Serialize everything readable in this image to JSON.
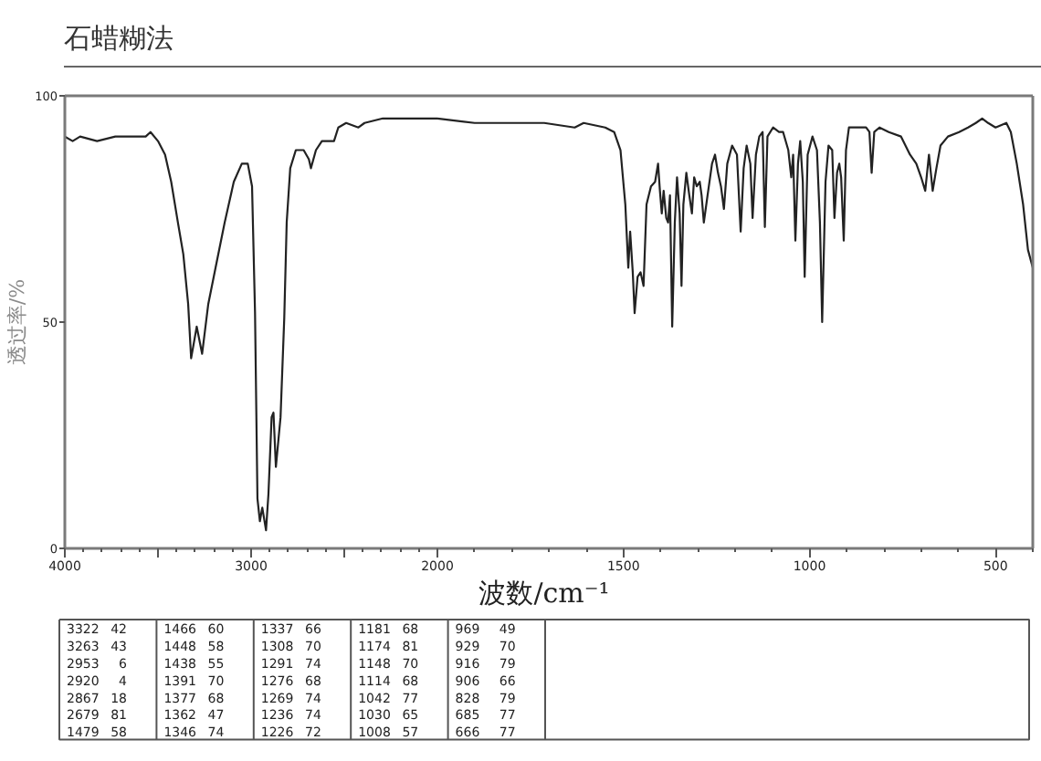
{
  "chart_data": [
    {
      "type": "line",
      "title": "石蜡糊法",
      "ylabel": "透过率/%",
      "xlim": [
        4000,
        2000
      ],
      "xticks": [
        4000,
        {
          "value": 3500,
          "label": null
        },
        3000,
        {
          "value": 2500,
          "label": null
        },
        2000
      ],
      "ylim": [
        0,
        100
      ],
      "yticks": [
        0,
        50,
        100
      ],
      "color": "#222222",
      "x": [
        4000,
        3958,
        3918,
        3827,
        3729,
        3566,
        3540,
        3500,
        3462,
        3429,
        3393,
        3364,
        3338,
        3322,
        3292,
        3263,
        3230,
        3191,
        3142,
        3093,
        3050,
        3018,
        2995,
        2979,
        2966,
        2953,
        2940,
        2920,
        2907,
        2890,
        2880,
        2867,
        2842,
        2822,
        2809,
        2790,
        2760,
        2718,
        2690,
        2679,
        2652,
        2620,
        2555,
        2532,
        2490,
        2424,
        2391,
        2293,
        2098,
        2000
      ],
      "values": [
        91,
        90,
        91,
        90,
        91,
        91,
        92,
        90,
        87,
        81,
        72,
        65,
        54,
        42,
        49,
        43,
        54,
        62,
        72,
        81,
        85,
        85,
        80,
        52,
        11,
        6,
        9,
        4,
        12,
        29,
        30,
        18,
        29,
        51,
        72,
        84,
        88,
        88,
        86,
        84,
        88,
        90,
        90,
        93,
        94,
        93,
        94,
        95,
        95,
        95
      ]
    },
    {
      "type": "line",
      "xlabel": "波数/cm⁻¹",
      "xlim": [
        2000,
        400
      ],
      "xticks": [
        1500,
        1000,
        500
      ],
      "ylim": [
        0,
        100
      ],
      "tick_labels": "x",
      "color": "#222222",
      "x": [
        2000,
        1900,
        1795,
        1713,
        1631,
        1607,
        1549,
        1525,
        1508,
        1495,
        1487,
        1482,
        1475,
        1470,
        1462,
        1454,
        1446,
        1438,
        1426,
        1415,
        1407,
        1402,
        1397,
        1392,
        1385,
        1380,
        1375,
        1369,
        1362,
        1356,
        1349,
        1344,
        1339,
        1331,
        1323,
        1316,
        1310,
        1303,
        1295,
        1290,
        1284,
        1274,
        1262,
        1254,
        1246,
        1238,
        1230,
        1221,
        1208,
        1195,
        1185,
        1177,
        1169,
        1159,
        1153,
        1144,
        1135,
        1126,
        1120,
        1113,
        1098,
        1082,
        1071,
        1057,
        1049,
        1044,
        1038,
        1031,
        1025,
        1018,
        1013,
        1005,
        992,
        980,
        972,
        966,
        957,
        949,
        939,
        933,
        926,
        920,
        915,
        908,
        902,
        894,
        869,
        848,
        839,
        833,
        826,
        812,
        787,
        754,
        730,
        713,
        700,
        689,
        679,
        669,
        659,
        648,
        628,
        598,
        574,
        553,
        536,
        520,
        500,
        471,
        459,
        443,
        426,
        413,
        400
      ],
      "values": [
        95,
        94,
        94,
        94,
        93,
        94,
        93,
        92,
        88,
        76,
        62,
        70,
        61,
        52,
        60,
        61,
        58,
        76,
        80,
        81,
        85,
        79,
        74,
        79,
        73,
        72,
        78,
        49,
        72,
        82,
        74,
        58,
        76,
        83,
        78,
        74,
        82,
        80,
        81,
        78,
        72,
        78,
        85,
        87,
        83,
        80,
        75,
        85,
        89,
        87,
        70,
        84,
        89,
        85,
        73,
        87,
        91,
        92,
        71,
        91,
        93,
        92,
        92,
        88,
        82,
        87,
        68,
        85,
        90,
        81,
        60,
        87,
        91,
        88,
        72,
        50,
        81,
        89,
        88,
        73,
        83,
        85,
        82,
        68,
        88,
        93,
        93,
        93,
        92,
        83,
        92,
        93,
        92,
        91,
        87,
        85,
        82,
        79,
        87,
        79,
        84,
        89,
        91,
        92,
        93,
        94,
        95,
        94,
        93,
        94,
        92,
        85,
        76,
        66,
        62
      ]
    },
    {
      "type": "other",
      "data_labels": true,
      "categories": [
        "3322",
        "3263",
        "2953",
        "2920",
        "2867",
        "2679",
        "1479",
        "1466",
        "1448",
        "1438",
        "1391",
        "1377",
        "1362",
        "1346",
        "1337",
        "1308",
        "1291",
        "1276",
        "1269",
        "1236",
        "1226",
        "1181",
        "1174",
        "1148",
        "1114",
        "1042",
        "1030",
        "1008",
        "969",
        "929",
        "916",
        "906",
        "828",
        "685",
        "666"
      ],
      "values": [
        42,
        43,
        6,
        4,
        18,
        81,
        58,
        60,
        58,
        55,
        70,
        68,
        47,
        74,
        66,
        70,
        74,
        68,
        74,
        74,
        72,
        68,
        81,
        70,
        68,
        77,
        65,
        57,
        49,
        70,
        79,
        66,
        79,
        77,
        77
      ]
    }
  ]
}
